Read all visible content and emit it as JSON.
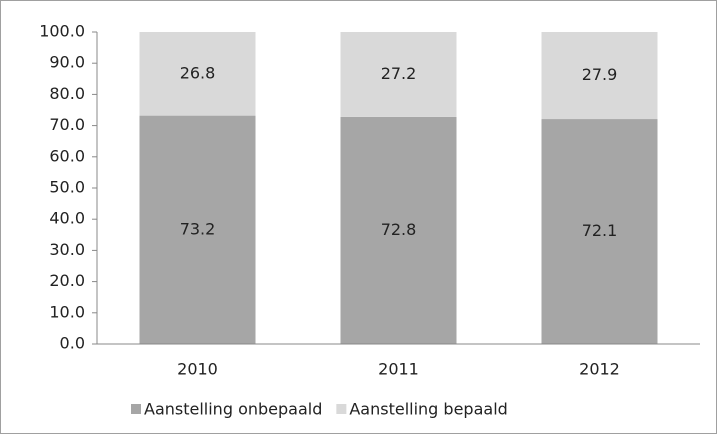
{
  "chart_data": {
    "type": "stacked_bar",
    "categories": [
      "2010",
      "2011",
      "2012"
    ],
    "series": [
      {
        "name": "Aanstelling onbepaald",
        "color": "#a6a6a6",
        "values": [
          73.2,
          72.8,
          72.1
        ]
      },
      {
        "name": "Aanstelling bepaald",
        "color": "#d9d9d9",
        "values": [
          26.8,
          27.2,
          27.9
        ]
      }
    ],
    "ylim": [
      0,
      100
    ],
    "yticks": [
      {
        "value": 0,
        "label": "0.0"
      },
      {
        "value": 10,
        "label": "10.0"
      },
      {
        "value": 20,
        "label": "20.0"
      },
      {
        "value": 30,
        "label": "30.0"
      },
      {
        "value": 40,
        "label": "40.0"
      },
      {
        "value": 50,
        "label": "50.0"
      },
      {
        "value": 60,
        "label": "60.0"
      },
      {
        "value": 70,
        "label": "70.0"
      },
      {
        "value": 80,
        "label": "80.0"
      },
      {
        "value": 90,
        "label": "90.0"
      },
      {
        "value": 100,
        "label": "100.0"
      }
    ],
    "legend": "bottom"
  }
}
